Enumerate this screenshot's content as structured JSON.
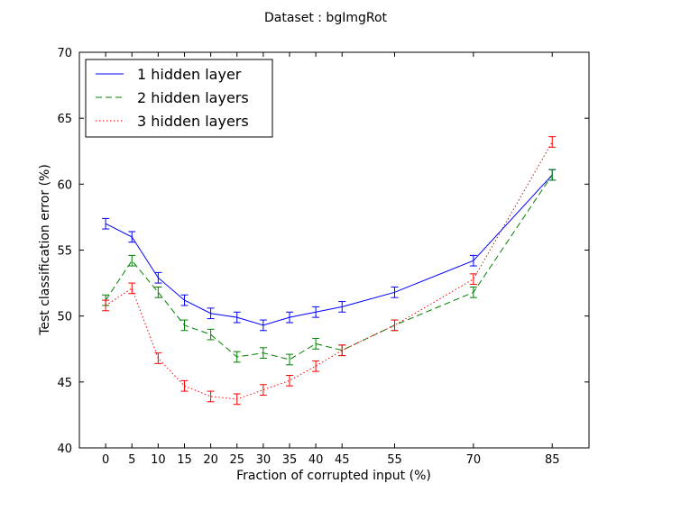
{
  "chart_data": {
    "type": "line",
    "title": "Dataset : bgImgRot",
    "xlabel": "Fraction of corrupted input (%)",
    "ylabel": "Test classification error (%)",
    "x": [
      0,
      5,
      10,
      15,
      20,
      25,
      30,
      35,
      40,
      45,
      55,
      70,
      85
    ],
    "xticks": [
      0,
      5,
      10,
      15,
      20,
      25,
      30,
      35,
      40,
      45,
      55,
      70,
      85
    ],
    "yticks": [
      40,
      45,
      50,
      55,
      60,
      65,
      70
    ],
    "xlim": [
      -5,
      92
    ],
    "ylim": [
      40,
      70
    ],
    "grid": false,
    "legend_position": "top-left",
    "series": [
      {
        "name": "1 hidden layer",
        "color": "#0000ff",
        "dash": "solid",
        "values": [
          57.0,
          56.0,
          52.9,
          51.2,
          50.2,
          49.9,
          49.3,
          49.9,
          50.3,
          50.7,
          51.8,
          54.2,
          60.7
        ],
        "errors": [
          0.4,
          0.4,
          0.4,
          0.4,
          0.4,
          0.4,
          0.4,
          0.4,
          0.4,
          0.4,
          0.4,
          0.4,
          0.4
        ]
      },
      {
        "name": "2 hidden layers",
        "color": "#008000",
        "dash": "dashed",
        "values": [
          51.2,
          54.2,
          51.8,
          49.3,
          48.6,
          46.9,
          47.2,
          46.7,
          47.9,
          47.4,
          49.3,
          51.8,
          60.7
        ],
        "errors": [
          0.4,
          0.4,
          0.4,
          0.4,
          0.4,
          0.4,
          0.4,
          0.4,
          0.4,
          0.4,
          0.4,
          0.4,
          0.4
        ]
      },
      {
        "name": "3 hidden layers",
        "color": "#ff0000",
        "dash": "dotted",
        "values": [
          50.8,
          52.1,
          46.8,
          44.7,
          43.9,
          43.7,
          44.4,
          45.1,
          46.2,
          47.4,
          49.3,
          52.8,
          63.2
        ],
        "errors": [
          0.4,
          0.4,
          0.4,
          0.4,
          0.4,
          0.4,
          0.4,
          0.4,
          0.4,
          0.4,
          0.4,
          0.4,
          0.4
        ]
      }
    ]
  }
}
